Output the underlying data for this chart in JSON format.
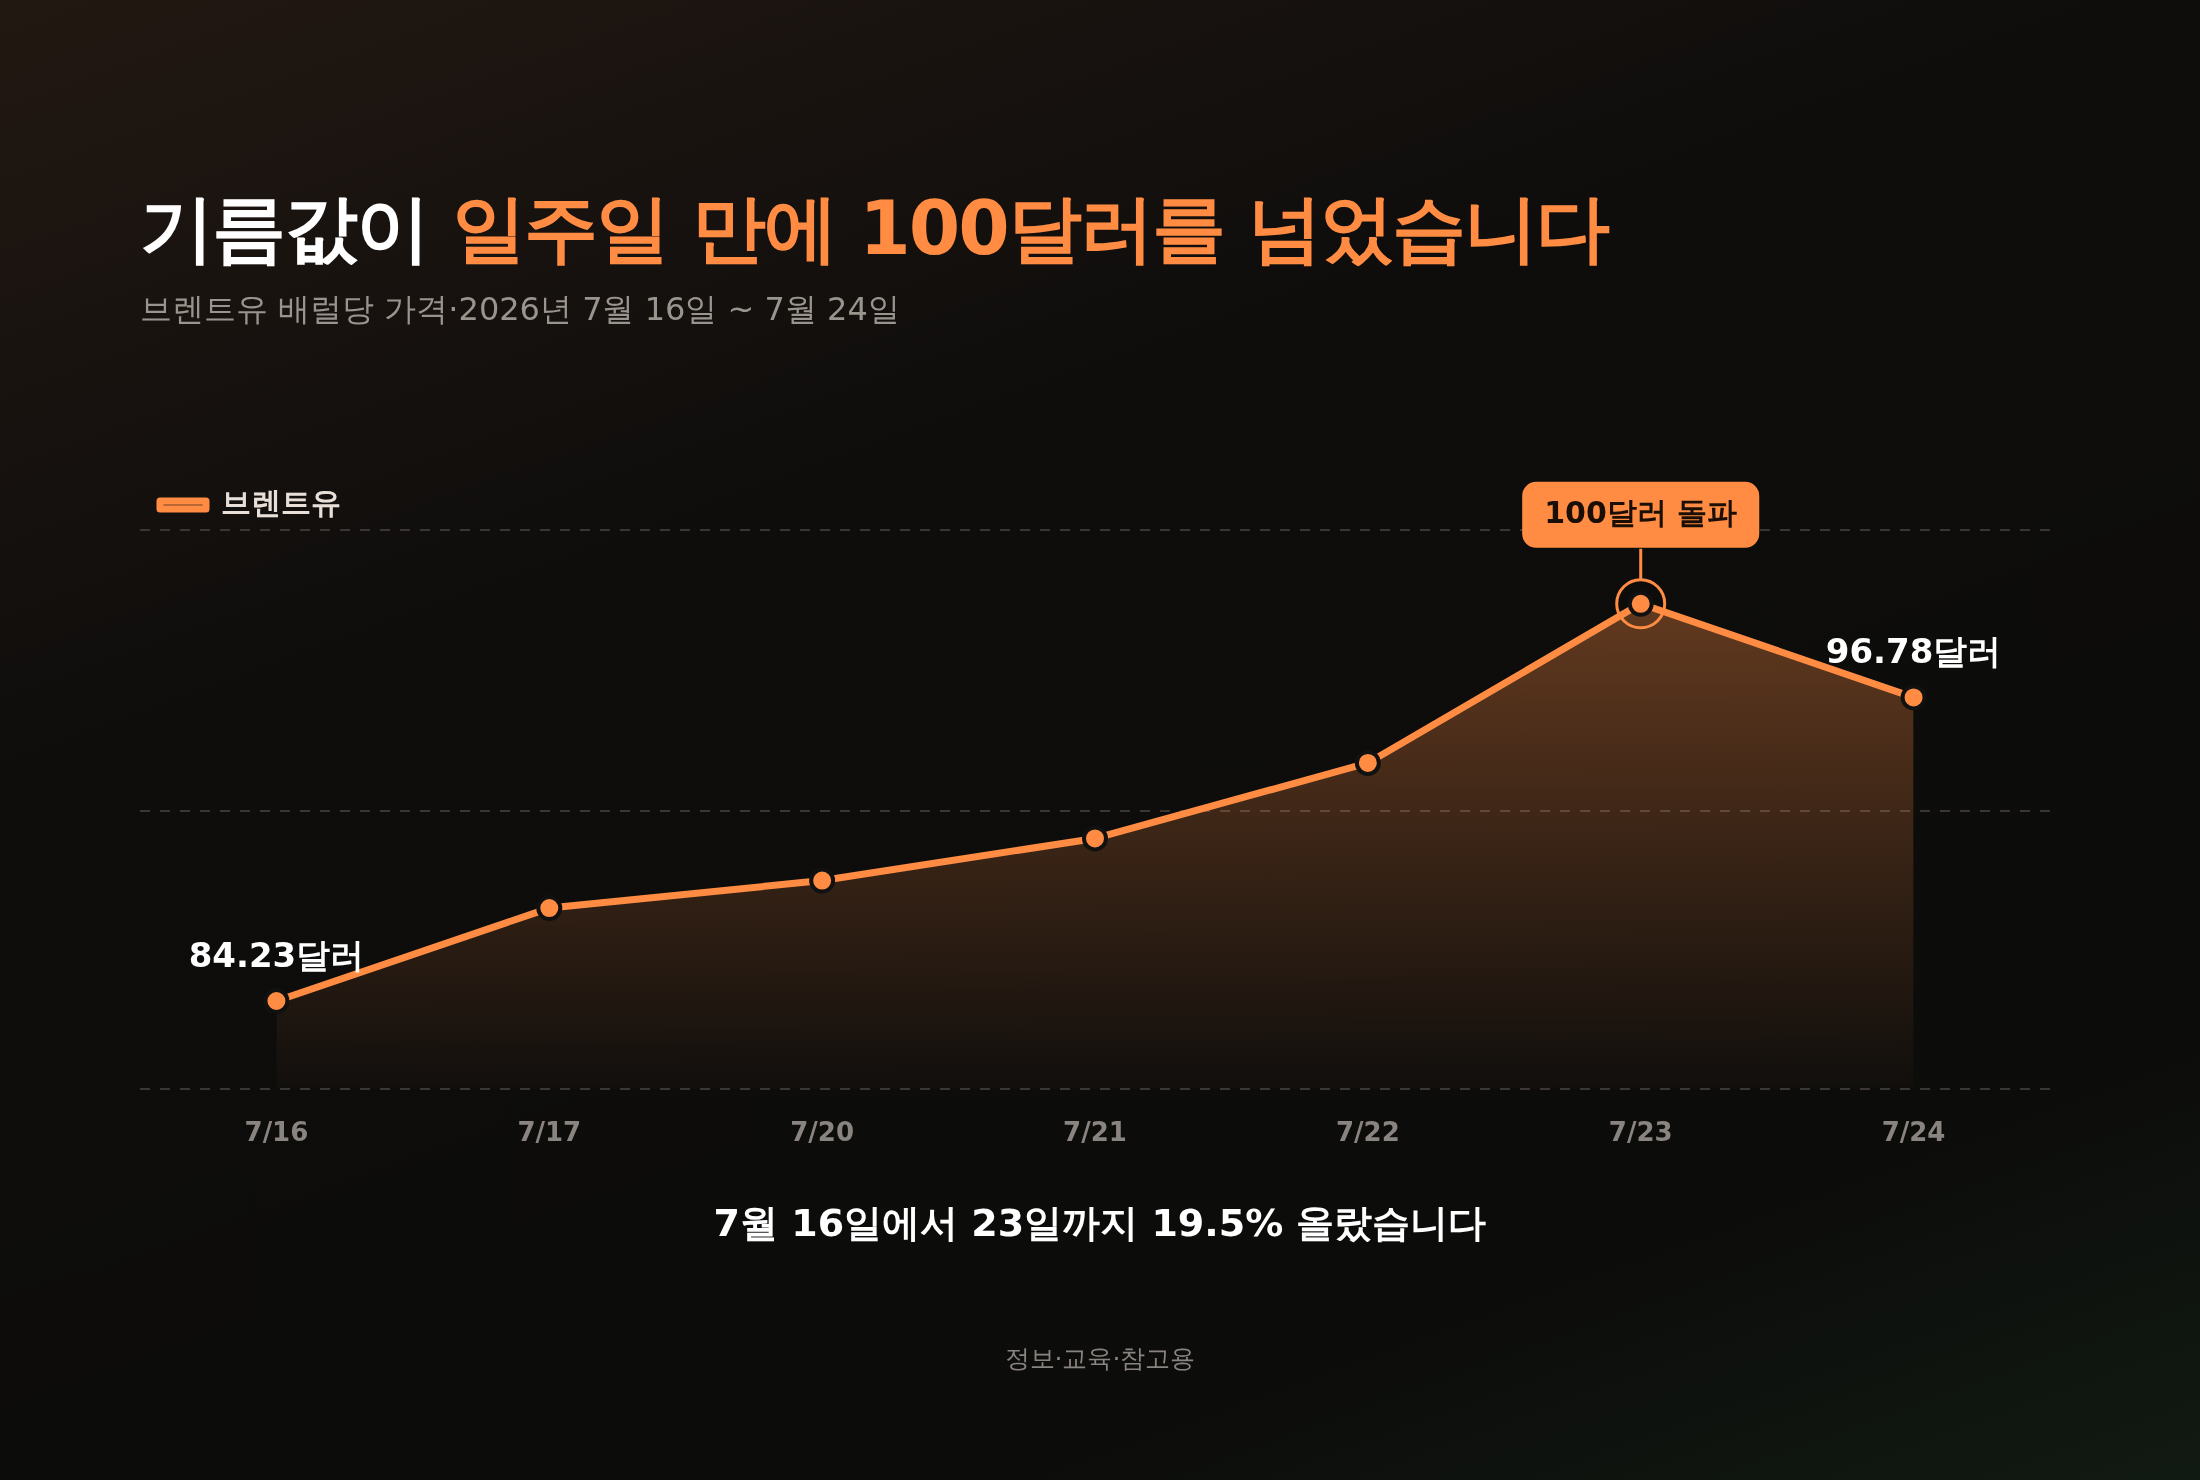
{
  "chart_data": {
    "type": "area",
    "title": "기름값이 일주일 만에 100달러를 넘었습니다",
    "subtitle": "브렌트유 배럴당 가격·2026년 7월 16일 ~ 7월 24일",
    "categories": [
      "7/16",
      "7/17",
      "7/20",
      "7/21",
      "7/22",
      "7/23",
      "7/24"
    ],
    "series": [
      {
        "name": "브렌트유",
        "color": "#ff8c42",
        "values": [
          84.23,
          88.07,
          89.21,
          90.95,
          94.07,
          100.65,
          96.78
        ],
        "value_labels": [
          "84.23달러",
          null,
          null,
          null,
          null,
          null,
          "96.78달러"
        ]
      }
    ],
    "ylim": [
      80.6,
      103.7
    ],
    "yticks": [
      {
        "value": 80.6,
        "label": null
      },
      {
        "value": 92.1,
        "label": null
      },
      {
        "value": 103.7,
        "label": null
      }
    ],
    "tick_labels": "x",
    "grid": "y",
    "legend": "top left",
    "marker": "circle",
    "line_style": "solid",
    "annotations": [
      {
        "text": "100달러 돌파",
        "x": "7/23",
        "y": 100.65
      },
      "7월 16일에서 23일까지 19.5% 올랐습니다",
      "정보·교육·참고용"
    ]
  }
}
